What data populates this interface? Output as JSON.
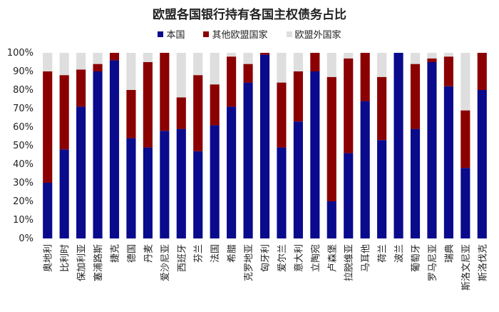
{
  "colors": {
    "domestic": "#0a0a8c",
    "other_eu": "#8b0000",
    "non_eu": "#dedede"
  },
  "chart_data": {
    "type": "bar",
    "stacked": true,
    "title": "欧盟各国银行持有各国主权债务占比",
    "legend_placement": "top",
    "ylim": [
      0,
      100
    ],
    "y_ticks": [
      "0%",
      "10%",
      "20%",
      "30%",
      "40%",
      "50%",
      "60%",
      "70%",
      "80%",
      "90%",
      "100%"
    ],
    "categories": [
      "奥地利",
      "比利时",
      "保加利亚",
      "塞浦路斯",
      "捷克",
      "德国",
      "丹麦",
      "爱沙尼亚",
      "西班牙",
      "芬兰",
      "法国",
      "希腊",
      "克罗地亚",
      "匈牙利",
      "爱尔兰",
      "意大利",
      "立陶宛",
      "卢森堡",
      "拉脱维亚",
      "马耳他",
      "荷兰",
      "波兰",
      "葡萄牙",
      "罗马尼亚",
      "瑞典",
      "斯洛文尼亚",
      "斯洛伐克"
    ],
    "series": [
      {
        "name": "本国",
        "values": [
          30,
          48,
          71,
          90,
          96,
          54,
          49,
          58,
          59,
          47,
          61,
          71,
          84,
          99,
          49,
          63,
          90,
          20,
          46,
          74,
          53,
          100,
          59,
          95,
          82,
          38,
          80
        ]
      },
      {
        "name": "其他欧盟国家",
        "values": [
          60,
          40,
          20,
          4,
          4,
          26,
          46,
          42,
          17,
          41,
          22,
          27,
          10,
          1,
          35,
          27,
          10,
          67,
          51,
          26,
          34,
          0,
          35,
          2,
          16,
          31,
          20
        ]
      },
      {
        "name": "欧盟外国家",
        "values": [
          10,
          12,
          9,
          6,
          0,
          20,
          5,
          0,
          24,
          12,
          17,
          2,
          6,
          0,
          16,
          10,
          0,
          13,
          3,
          0,
          13,
          0,
          6,
          3,
          2,
          31,
          0
        ]
      }
    ]
  }
}
